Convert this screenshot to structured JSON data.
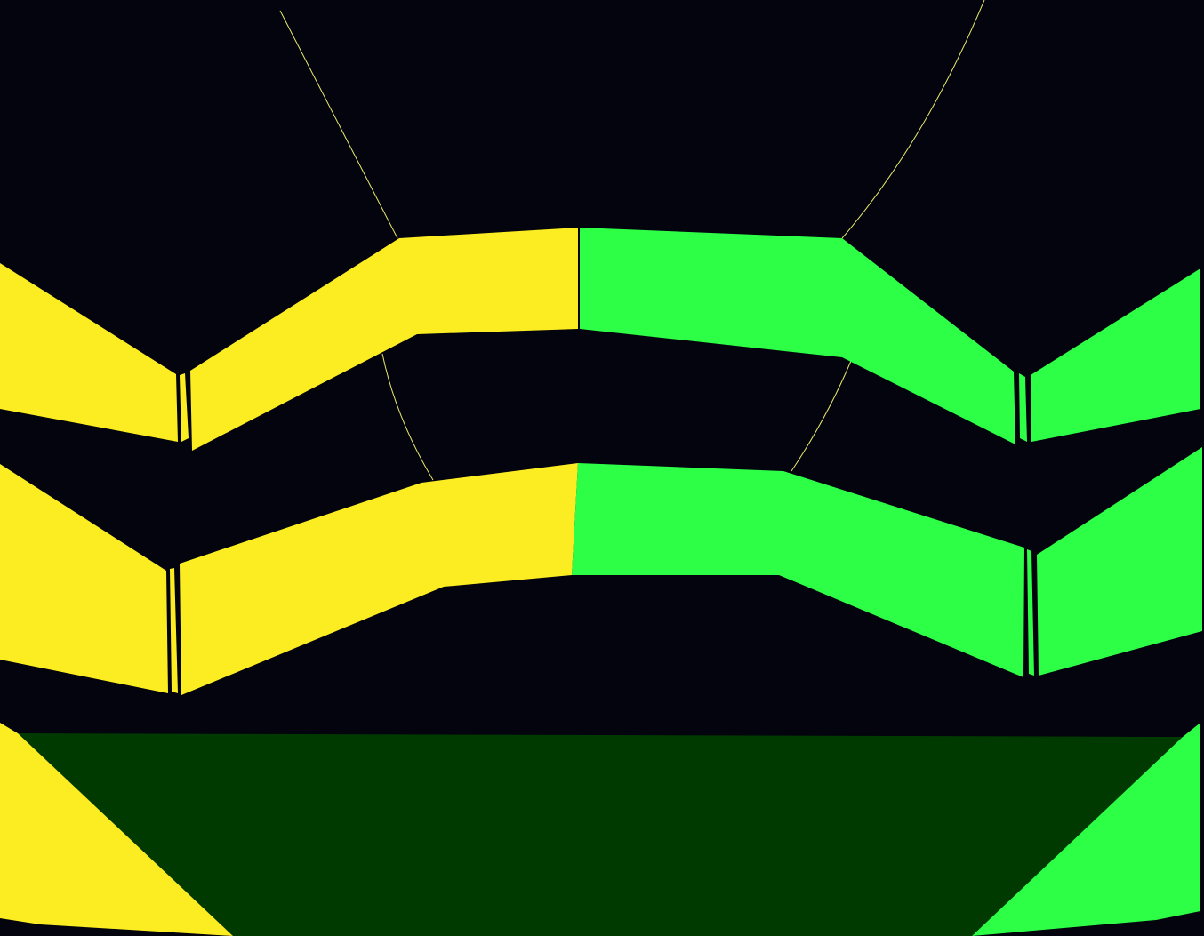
{
  "scene": {
    "type": "3d-game-viewport",
    "colors": {
      "background": "#03040d",
      "yellow": "#fbed22",
      "green": "#2dff46",
      "floor": "#003a00",
      "wire": "#e8e86a"
    },
    "elements": [
      "upper-yellow-wall",
      "upper-green-wall",
      "lower-yellow-wall",
      "lower-green-wall",
      "floor-plane",
      "guide-curves"
    ]
  }
}
